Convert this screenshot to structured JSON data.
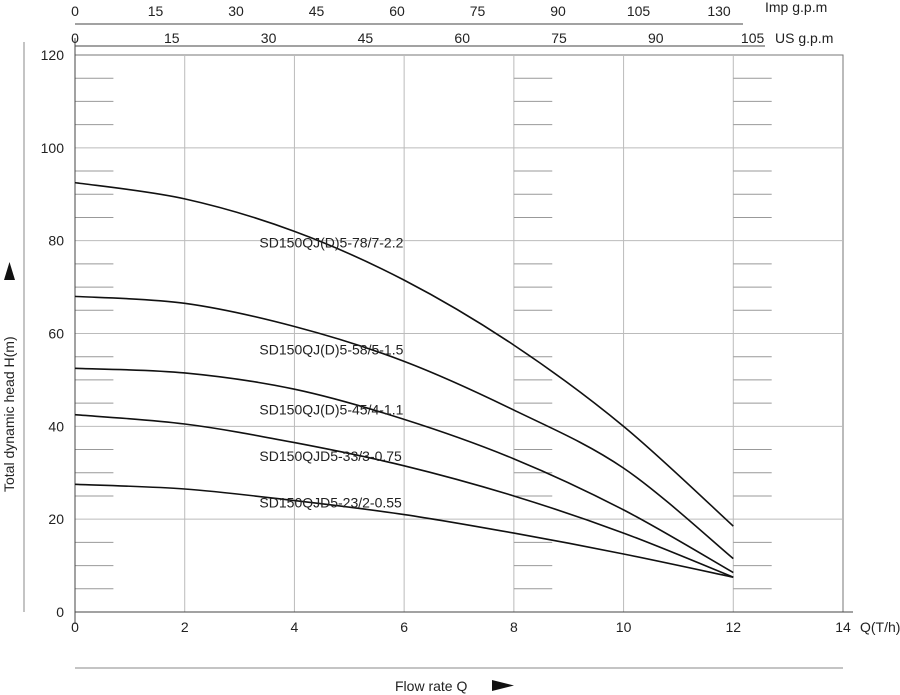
{
  "chart_data": {
    "type": "line",
    "xlabel": "Flow rate Q",
    "ylabel": "Total dynamic head H(m)",
    "x_unit": "Q(T/h)",
    "xlim": [
      0,
      14
    ],
    "ylim": [
      0,
      120
    ],
    "x_ticks": [
      0,
      2,
      4,
      6,
      8,
      10,
      12,
      14
    ],
    "y_ticks": [
      0,
      20,
      40,
      60,
      80,
      100,
      120
    ],
    "grid": true,
    "secondary_axes": [
      {
        "unit": "Imp g.p.m",
        "ticks": [
          0,
          15,
          30,
          45,
          60,
          75,
          90,
          105,
          130
        ]
      },
      {
        "unit": "US g.p.m",
        "ticks": [
          0,
          15,
          30,
          45,
          60,
          75,
          90,
          105
        ]
      }
    ],
    "series": [
      {
        "name": "SD150QJ(D)5-78/7-2.2",
        "label_at": [
          4.0,
          78.5
        ],
        "x": [
          0,
          2,
          4,
          6,
          8,
          10,
          12
        ],
        "y": [
          92.5,
          89.0,
          82.0,
          71.5,
          57.5,
          40.0,
          18.5
        ]
      },
      {
        "name": "SD150QJ(D)5-58/5-1.5",
        "label_at": [
          4.0,
          55.5
        ],
        "x": [
          0,
          2,
          4,
          6,
          8,
          10,
          12
        ],
        "y": [
          68.0,
          66.5,
          61.5,
          54.0,
          43.5,
          31.0,
          11.5
        ]
      },
      {
        "name": "SD150QJ(D)5-45/4-1.1",
        "label_at": [
          4.0,
          42.5
        ],
        "x": [
          0,
          2,
          4,
          6,
          8,
          10,
          12
        ],
        "y": [
          52.5,
          51.5,
          48.0,
          41.5,
          33.0,
          22.0,
          8.5
        ]
      },
      {
        "name": "SD150QJD5-33/3-0.75",
        "label_at": [
          4.0,
          32.5
        ],
        "x": [
          0,
          2,
          4,
          6,
          8,
          10,
          12
        ],
        "y": [
          42.5,
          40.5,
          36.5,
          31.5,
          25.0,
          17.0,
          7.5
        ]
      },
      {
        "name": "SD150QJD5-23/2-0.55",
        "label_at": [
          4.0,
          22.5
        ],
        "x": [
          0,
          2,
          4,
          6,
          8,
          10,
          12
        ],
        "y": [
          27.5,
          26.5,
          24.0,
          21.0,
          17.0,
          12.5,
          7.5
        ]
      }
    ]
  }
}
